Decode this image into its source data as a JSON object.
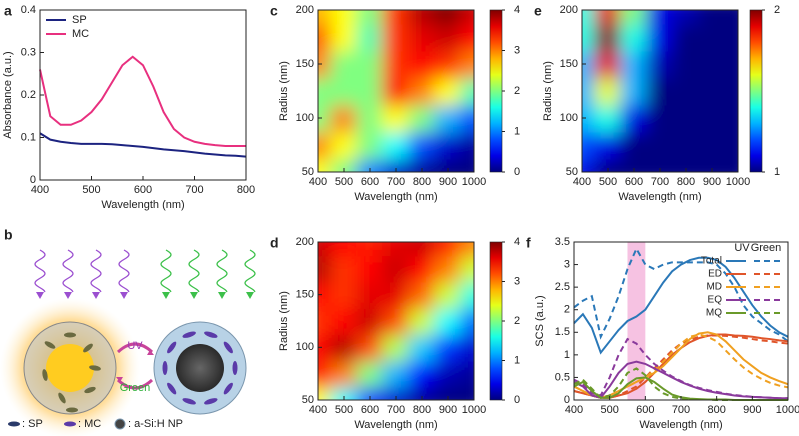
{
  "chart_data": [
    {
      "type": "line",
      "panel_label": "a",
      "xlabel": "Wavelength (nm)",
      "ylabel": "Absorbance (a.u.)",
      "x": [
        400,
        420,
        440,
        460,
        480,
        500,
        520,
        540,
        560,
        580,
        600,
        620,
        640,
        660,
        680,
        700,
        720,
        740,
        760,
        780,
        800
      ],
      "series": [
        {
          "name": "SP",
          "color": "#1c2380",
          "values": [
            0.11,
            0.095,
            0.09,
            0.087,
            0.085,
            0.085,
            0.085,
            0.084,
            0.082,
            0.08,
            0.078,
            0.075,
            0.072,
            0.07,
            0.068,
            0.065,
            0.062,
            0.06,
            0.058,
            0.057,
            0.055
          ]
        },
        {
          "name": "MC",
          "color": "#e8307f",
          "values": [
            0.26,
            0.15,
            0.13,
            0.13,
            0.14,
            0.16,
            0.19,
            0.23,
            0.27,
            0.29,
            0.27,
            0.22,
            0.16,
            0.12,
            0.1,
            0.09,
            0.085,
            0.082,
            0.08,
            0.08,
            0.08
          ]
        }
      ],
      "xlim": [
        400,
        800
      ],
      "xticks": [
        400,
        500,
        600,
        700,
        800
      ],
      "ylim": [
        0,
        0.4
      ],
      "yticks": [
        0,
        0.1,
        0.2,
        0.3,
        0.4
      ],
      "legend": "upper left"
    },
    {
      "type": "heatmap",
      "panel_label": "c",
      "xlabel": "Wavelength (nm)",
      "ylabel": "Radius (nm)",
      "x": [
        400,
        500,
        600,
        700,
        800,
        900,
        1000
      ],
      "y": [
        50,
        75,
        100,
        125,
        150,
        175,
        200
      ],
      "values": [
        [
          2.5,
          2,
          1,
          0.3,
          0.1,
          0,
          0
        ],
        [
          3,
          2.5,
          2,
          1.5,
          0.8,
          0.3,
          0.1
        ],
        [
          2,
          3,
          2,
          2.5,
          2,
          1.2,
          0.8
        ],
        [
          2,
          2,
          2,
          3.5,
          3,
          2.5,
          1.8
        ],
        [
          3,
          2,
          2,
          3.3,
          3.5,
          3.3,
          3
        ],
        [
          3.2,
          2.5,
          1.8,
          3.3,
          3.6,
          3.7,
          3.5
        ],
        [
          2.8,
          2.5,
          2,
          3.3,
          3.8,
          4,
          3.7
        ]
      ],
      "colormap": "jet",
      "clim": [
        0,
        4
      ],
      "cticks": [
        0,
        1,
        2,
        3,
        4
      ],
      "xlim": [
        400,
        1000
      ],
      "xticks": [
        400,
        500,
        600,
        700,
        800,
        900,
        1000
      ],
      "ylim": [
        50,
        200
      ],
      "yticks": [
        50,
        100,
        150,
        200
      ]
    },
    {
      "type": "heatmap",
      "panel_label": "d",
      "xlabel": "Wavelength (nm)",
      "ylabel": "Radius (nm)",
      "x": [
        400,
        500,
        600,
        700,
        800,
        900,
        1000
      ],
      "y": [
        50,
        75,
        100,
        125,
        150,
        175,
        200
      ],
      "values": [
        [
          2.5,
          1.5,
          0.7,
          0.3,
          0.1,
          0,
          0
        ],
        [
          3.5,
          3,
          2,
          1.2,
          0.5,
          0.2,
          0.1
        ],
        [
          3.5,
          3.8,
          3.2,
          2.2,
          1.3,
          0.7,
          0.3
        ],
        [
          3.3,
          3.5,
          3.7,
          3.2,
          2.3,
          1.5,
          0.9
        ],
        [
          3.5,
          3.3,
          3.6,
          3.6,
          3.1,
          2.3,
          1.6
        ],
        [
          3.8,
          3.3,
          3.5,
          3.7,
          3.5,
          3,
          2.3
        ],
        [
          3.7,
          3.5,
          3.4,
          3.6,
          3.7,
          3.4,
          3
        ]
      ],
      "colormap": "jet",
      "clim": [
        0,
        4
      ],
      "cticks": [
        0,
        1,
        2,
        3,
        4
      ],
      "xlim": [
        400,
        1000
      ],
      "xticks": [
        400,
        500,
        600,
        700,
        800,
        900,
        1000
      ],
      "ylim": [
        50,
        200
      ],
      "yticks": [
        50,
        100,
        150,
        200
      ]
    },
    {
      "type": "heatmap",
      "panel_label": "e",
      "xlabel": "Wavelength (nm)",
      "ylabel": "Radius (nm)",
      "x": [
        400,
        500,
        600,
        700,
        800,
        900,
        1000
      ],
      "y": [
        50,
        75,
        100,
        125,
        150,
        175,
        200
      ],
      "values": [
        [
          1.1,
          1,
          1,
          1,
          1,
          1,
          1
        ],
        [
          1.2,
          1.1,
          1,
          1,
          1,
          1,
          1
        ],
        [
          1.3,
          1.4,
          1.1,
          1,
          1,
          1,
          1
        ],
        [
          1.3,
          1.6,
          1.3,
          1,
          1,
          1,
          1
        ],
        [
          1.3,
          1.9,
          1.3,
          1.05,
          1,
          1,
          1
        ],
        [
          1.4,
          2,
          1.4,
          1.1,
          1,
          1,
          1
        ],
        [
          1.4,
          1.9,
          1.5,
          1.1,
          1.05,
          1,
          1
        ]
      ],
      "colormap": "jet",
      "clim": [
        1,
        2
      ],
      "cticks": [
        1,
        2
      ],
      "xlim": [
        400,
        1000
      ],
      "xticks": [
        400,
        500,
        600,
        700,
        800,
        900,
        1000
      ],
      "ylim": [
        50,
        200
      ],
      "yticks": [
        50,
        100,
        150,
        200
      ]
    },
    {
      "type": "multiline",
      "panel_label": "f",
      "xlabel": "Wavelength (nm)",
      "ylabel": "SCS (a.u.)",
      "x": [
        400,
        425,
        450,
        475,
        500,
        525,
        550,
        575,
        600,
        625,
        650,
        675,
        700,
        725,
        750,
        775,
        800,
        825,
        850,
        875,
        900,
        925,
        950,
        975,
        1000
      ],
      "legend_columns": [
        "UV",
        "Green"
      ],
      "highlight": [
        550,
        600
      ],
      "highlight_color": "#f6c2e2",
      "series": [
        {
          "name": "Total",
          "color": "#2a78b8",
          "uv": [
            1.7,
            1.9,
            1.6,
            1.05,
            1.3,
            1.55,
            1.75,
            1.85,
            2.0,
            2.3,
            2.6,
            2.85,
            3.0,
            3.1,
            3.15,
            3.15,
            3.1,
            2.95,
            2.7,
            2.4,
            2.1,
            1.85,
            1.65,
            1.5,
            1.4
          ],
          "green": [
            2.05,
            2.2,
            2.3,
            1.4,
            1.8,
            2.3,
            2.9,
            3.35,
            3.0,
            2.9,
            3.0,
            3.05,
            3.05,
            3.05,
            3.05,
            3.05,
            3.0,
            2.8,
            2.5,
            2.1,
            1.85,
            1.7,
            1.55,
            1.45,
            1.3
          ]
        },
        {
          "name": "ED",
          "color": "#e0552a",
          "uv": [
            0.2,
            0.15,
            0.1,
            0.05,
            0.05,
            0.1,
            0.15,
            0.25,
            0.4,
            0.6,
            0.8,
            1.0,
            1.15,
            1.28,
            1.37,
            1.42,
            1.45,
            1.45,
            1.43,
            1.42,
            1.4,
            1.37,
            1.35,
            1.32,
            1.3
          ],
          "green": [
            0.2,
            0.15,
            0.1,
            0.05,
            0.05,
            0.1,
            0.2,
            0.3,
            0.5,
            0.7,
            0.9,
            1.1,
            1.25,
            1.33,
            1.4,
            1.43,
            1.43,
            1.42,
            1.4,
            1.38,
            1.35,
            1.32,
            1.3,
            1.27,
            1.25
          ]
        },
        {
          "name": "MD",
          "color": "#f0a020",
          "uv": [
            0.3,
            0.2,
            0.1,
            0.05,
            0.1,
            0.2,
            0.3,
            0.4,
            0.5,
            0.6,
            0.75,
            0.95,
            1.15,
            1.35,
            1.47,
            1.5,
            1.45,
            1.3,
            1.1,
            0.9,
            0.75,
            0.6,
            0.5,
            0.42,
            0.35
          ],
          "green": [
            0.3,
            0.2,
            0.1,
            0.05,
            0.1,
            0.2,
            0.3,
            0.4,
            0.5,
            0.65,
            0.85,
            1.05,
            1.25,
            1.4,
            1.45,
            1.4,
            1.3,
            1.1,
            0.9,
            0.72,
            0.58,
            0.47,
            0.38,
            0.32,
            0.28
          ]
        },
        {
          "name": "EQ",
          "color": "#8a3a9c",
          "uv": [
            0.4,
            0.3,
            0.1,
            0.05,
            0.3,
            0.6,
            0.8,
            0.85,
            0.8,
            0.7,
            0.6,
            0.5,
            0.4,
            0.32,
            0.25,
            0.2,
            0.16,
            0.13,
            0.1,
            0.08,
            0.07,
            0.06,
            0.05,
            0.04,
            0.04
          ],
          "green": [
            0.45,
            0.35,
            0.15,
            0.1,
            0.5,
            1.0,
            1.35,
            1.25,
            1.0,
            0.8,
            0.65,
            0.52,
            0.42,
            0.33,
            0.27,
            0.22,
            0.18,
            0.14,
            0.11,
            0.09,
            0.07,
            0.06,
            0.05,
            0.04,
            0.04
          ]
        },
        {
          "name": "MQ",
          "color": "#6a9a2a",
          "uv": [
            0.3,
            0.4,
            0.2,
            0.05,
            0.05,
            0.15,
            0.35,
            0.48,
            0.5,
            0.4,
            0.25,
            0.12,
            0.06,
            0.03,
            0.02,
            0.01,
            0.01,
            0.01,
            0,
            0,
            0,
            0,
            0,
            0,
            0
          ],
          "green": [
            0.35,
            0.45,
            0.25,
            0.05,
            0.1,
            0.3,
            0.6,
            0.7,
            0.55,
            0.3,
            0.15,
            0.07,
            0.03,
            0.02,
            0.01,
            0.01,
            0,
            0,
            0,
            0,
            0,
            0,
            0,
            0,
            0
          ]
        }
      ],
      "xlim": [
        400,
        1000
      ],
      "xticks": [
        400,
        500,
        600,
        700,
        800,
        900,
        1000
      ],
      "ylim": [
        0,
        3.5
      ],
      "yticks": [
        0,
        0.5,
        1,
        1.5,
        2,
        2.5,
        3,
        3.5
      ],
      "legend": "upper right"
    }
  ],
  "diagram": {
    "panel_label": "b",
    "arrow_labels": [
      "UV",
      "Green"
    ],
    "legend": [
      ": SP",
      ": MC",
      ": a-Si:H NP"
    ]
  }
}
